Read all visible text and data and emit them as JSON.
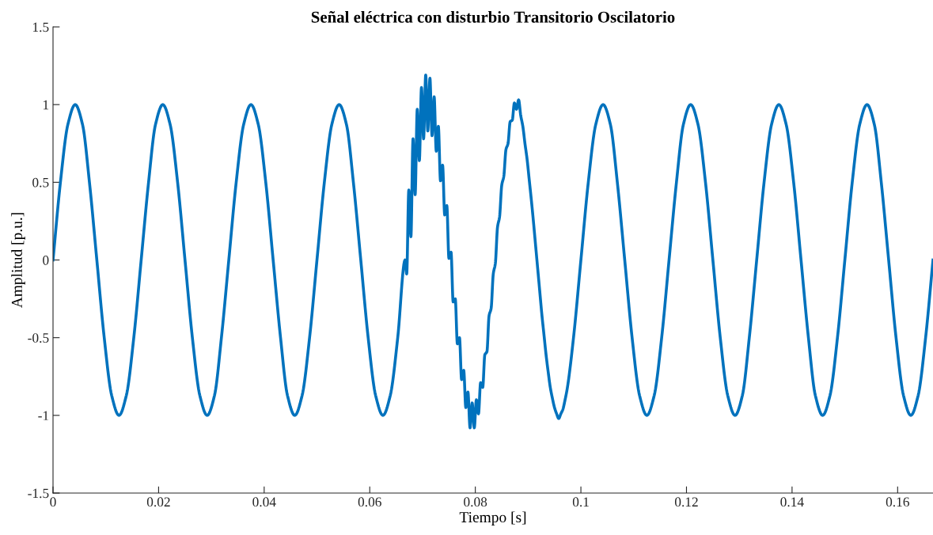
{
  "chart_data": {
    "type": "line",
    "title": "Señal eléctrica con disturbio Transitorio Oscilatorio",
    "xlabel": "Tiempo [s]",
    "ylabel": "Amplitud [p.u.]",
    "xlim": [
      0,
      0.1667
    ],
    "ylim": [
      -1.5,
      1.5
    ],
    "xticks": [
      0,
      0.02,
      0.04,
      0.06,
      0.08,
      0.1,
      0.12,
      0.14,
      0.16
    ],
    "yticks": [
      -1.5,
      -1,
      -0.5,
      0,
      0.5,
      1,
      1.5
    ],
    "grid": false,
    "legend": false,
    "marker": "none",
    "line_style": "solid",
    "series": [
      {
        "color": "#0072bd",
        "x": [
          0,
          0.0014,
          0.0028,
          0.0042,
          0.0056,
          0.0069,
          0.0083,
          0.0097,
          0.0111,
          0.0125,
          0.0139,
          0.0153,
          0.0167,
          0.0181,
          0.0194,
          0.0208,
          0.0222,
          0.0236,
          0.025,
          0.0264,
          0.0278,
          0.0292,
          0.0306,
          0.0319,
          0.0333,
          0.0347,
          0.0361,
          0.0375,
          0.0389,
          0.0403,
          0.0417,
          0.0431,
          0.0444,
          0.0458,
          0.0472,
          0.0486,
          0.05,
          0.0514,
          0.0528,
          0.0542,
          0.0556,
          0.0569,
          0.0583,
          0.0597,
          0.0611,
          0.0625,
          0.0639,
          0.0653,
          0.0667,
          0.067,
          0.0674,
          0.0678,
          0.0682,
          0.0686,
          0.069,
          0.0694,
          0.0698,
          0.0702,
          0.0706,
          0.071,
          0.0714,
          0.0718,
          0.0722,
          0.0726,
          0.073,
          0.0734,
          0.0738,
          0.0742,
          0.0746,
          0.075,
          0.0754,
          0.0758,
          0.0762,
          0.0766,
          0.077,
          0.0774,
          0.0778,
          0.0782,
          0.0786,
          0.079,
          0.0794,
          0.0798,
          0.0802,
          0.0806,
          0.081,
          0.0814,
          0.0818,
          0.0822,
          0.0826,
          0.083,
          0.0834,
          0.0838,
          0.0842,
          0.0846,
          0.085,
          0.0854,
          0.0858,
          0.0862,
          0.0866,
          0.087,
          0.0874,
          0.0878,
          0.0882,
          0.0886,
          0.089,
          0.0894,
          0.0898,
          0.0902,
          0.0906,
          0.091,
          0.0914,
          0.0918,
          0.0922,
          0.0926,
          0.093,
          0.0934,
          0.0938,
          0.0942,
          0.0946,
          0.095,
          0.0954,
          0.0958,
          0.0962,
          0.0966,
          0.097,
          0.0974,
          0.0986,
          0.1,
          0.1014,
          0.1028,
          0.1042,
          0.1056,
          0.1069,
          0.1083,
          0.1097,
          0.1111,
          0.1125,
          0.1139,
          0.1153,
          0.1167,
          0.1181,
          0.1194,
          0.1208,
          0.1222,
          0.1236,
          0.125,
          0.1264,
          0.1278,
          0.1292,
          0.1306,
          0.1319,
          0.1333,
          0.1347,
          0.1361,
          0.1375,
          0.1389,
          0.1403,
          0.1417,
          0.1431,
          0.1444,
          0.1458,
          0.1472,
          0.1486,
          0.15,
          0.1514,
          0.1528,
          0.1542,
          0.1556,
          0.1569,
          0.1583,
          0.1597,
          0.1611,
          0.1625,
          0.1639,
          0.1653,
          0.1667
        ],
        "values": [
          0,
          0.5,
          0.87,
          1,
          0.87,
          0.5,
          0,
          -0.5,
          -0.87,
          -1,
          -0.87,
          -0.5,
          0,
          0.5,
          0.87,
          1,
          0.87,
          0.5,
          0,
          -0.5,
          -0.87,
          -1,
          -0.87,
          -0.5,
          0,
          0.5,
          0.87,
          1,
          0.87,
          0.5,
          0,
          -0.5,
          -0.87,
          -1,
          -0.87,
          -0.5,
          0,
          0.5,
          0.87,
          1,
          0.87,
          0.5,
          0,
          -0.5,
          -0.87,
          -1,
          -0.87,
          -0.5,
          0,
          -0.09,
          0.45,
          0.15,
          0.78,
          0.42,
          0.97,
          0.64,
          1.11,
          0.78,
          1.19,
          0.83,
          1.17,
          0.8,
          1.05,
          0.7,
          0.86,
          0.51,
          0.61,
          0.29,
          0.35,
          0.01,
          0.05,
          -0.27,
          -0.25,
          -0.54,
          -0.5,
          -0.77,
          -0.71,
          -0.95,
          -0.85,
          -1.08,
          -0.92,
          -1.08,
          -0.9,
          -0.99,
          -0.79,
          -0.82,
          -0.61,
          -0.59,
          -0.36,
          -0.31,
          -0.09,
          -0.02,
          0.21,
          0.28,
          0.48,
          0.54,
          0.71,
          0.75,
          0.89,
          0.9,
          1.01,
          0.97,
          1.03,
          0.93,
          0.86,
          0.75,
          0.65,
          0.52,
          0.39,
          0.25,
          0.1,
          -0.05,
          -0.2,
          -0.35,
          -0.48,
          -0.61,
          -0.72,
          -0.82,
          -0.89,
          -0.95,
          -0.99,
          -1.02,
          -0.99,
          -0.96,
          -0.9,
          -0.83,
          -0.5,
          0,
          0.5,
          0.87,
          1,
          0.87,
          0.5,
          0,
          -0.5,
          -0.87,
          -1,
          -0.87,
          -0.5,
          0,
          0.5,
          0.87,
          1,
          0.87,
          0.5,
          0,
          -0.5,
          -0.87,
          -1,
          -0.87,
          -0.5,
          0,
          0.5,
          0.87,
          1,
          0.87,
          0.5,
          0,
          -0.5,
          -0.87,
          -1,
          -0.87,
          -0.5,
          0,
          0.5,
          0.87,
          1,
          0.87,
          0.5,
          0,
          -0.5,
          -0.87,
          -1,
          -0.87,
          -0.5,
          0
        ]
      }
    ]
  }
}
